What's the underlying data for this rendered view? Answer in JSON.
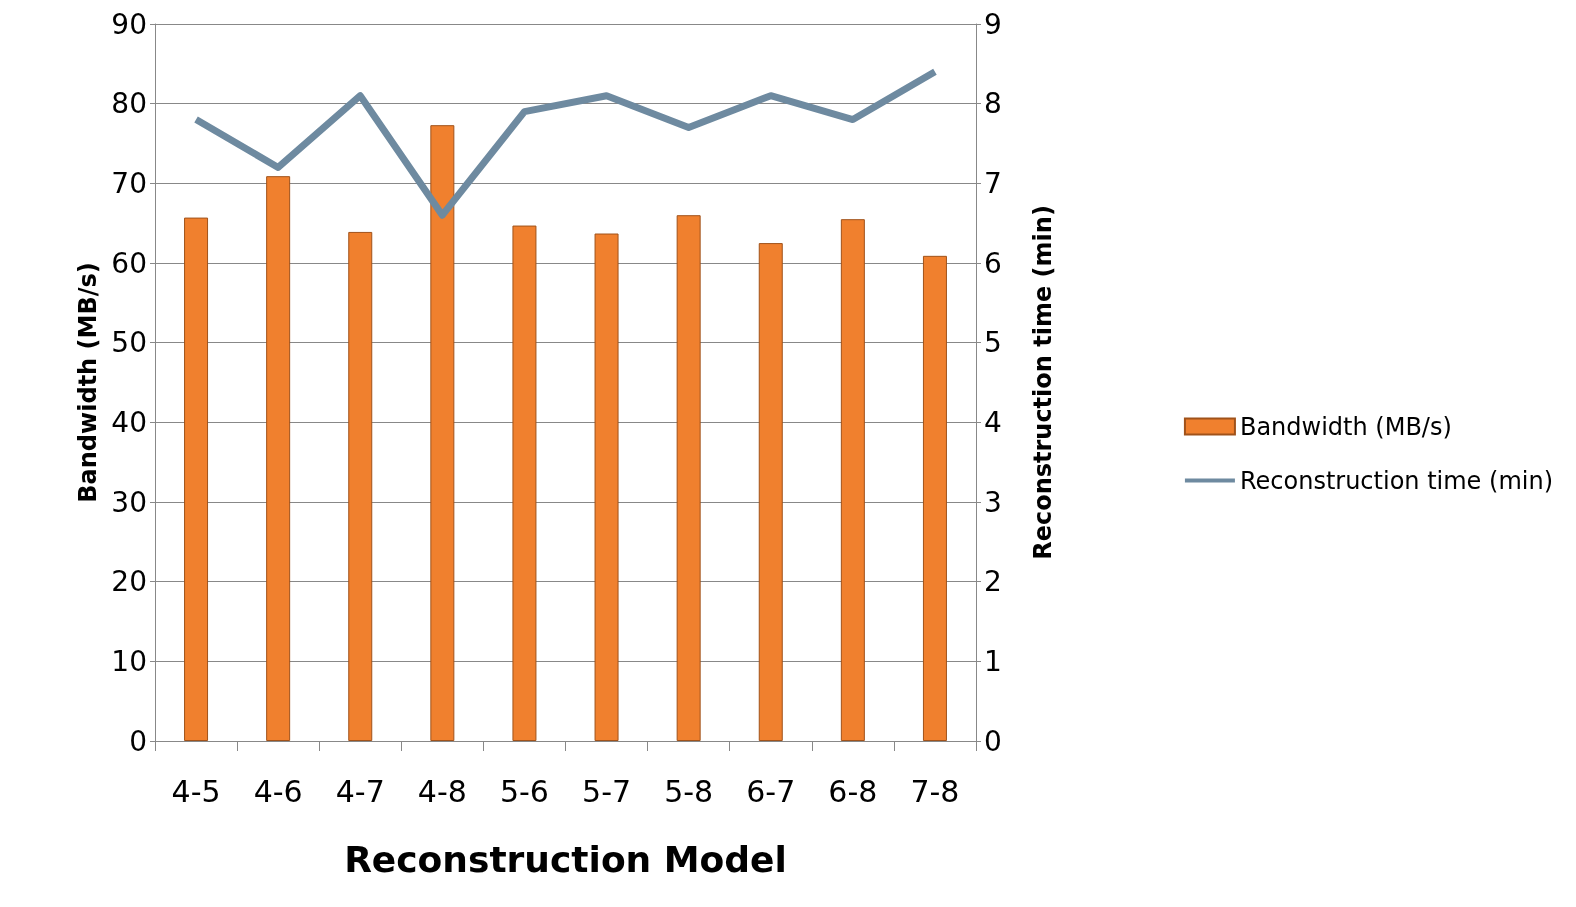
{
  "chart_data": {
    "type": "bar",
    "xlabel": "Reconstruction Model",
    "ylabel": "Bandwidth (MB/s)",
    "y2label": "Reconstruction time (min)",
    "categories": [
      "4-5",
      "4-6",
      "4-7",
      "4-8",
      "5-6",
      "5-7",
      "5-8",
      "6-7",
      "6-8",
      "7-8"
    ],
    "series": [
      {
        "name": "Bandwidth (MB/s)",
        "color": "#f0802e",
        "values": [
          65.7,
          70.9,
          63.9,
          77.3,
          64.7,
          63.7,
          66.0,
          62.5,
          65.5,
          60.9
        ]
      },
      {
        "name": "Reconstruction time (min)",
        "type": "line",
        "axis": "y2",
        "color": "#6e8aa0",
        "values": [
          7.8,
          7.2,
          8.1,
          6.6,
          7.9,
          8.1,
          7.7,
          8.1,
          7.8,
          8.4
        ]
      }
    ],
    "ylim": [
      0,
      90
    ],
    "yticks": [
      0,
      10,
      20,
      30,
      40,
      50,
      60,
      70,
      80,
      90
    ],
    "y2lim": [
      0,
      9
    ],
    "y2ticks": [
      0,
      1,
      2,
      3,
      4,
      5,
      6,
      7,
      8,
      9
    ],
    "grid": "y",
    "legend": "right",
    "marker": "none",
    "line_style": "solid"
  }
}
